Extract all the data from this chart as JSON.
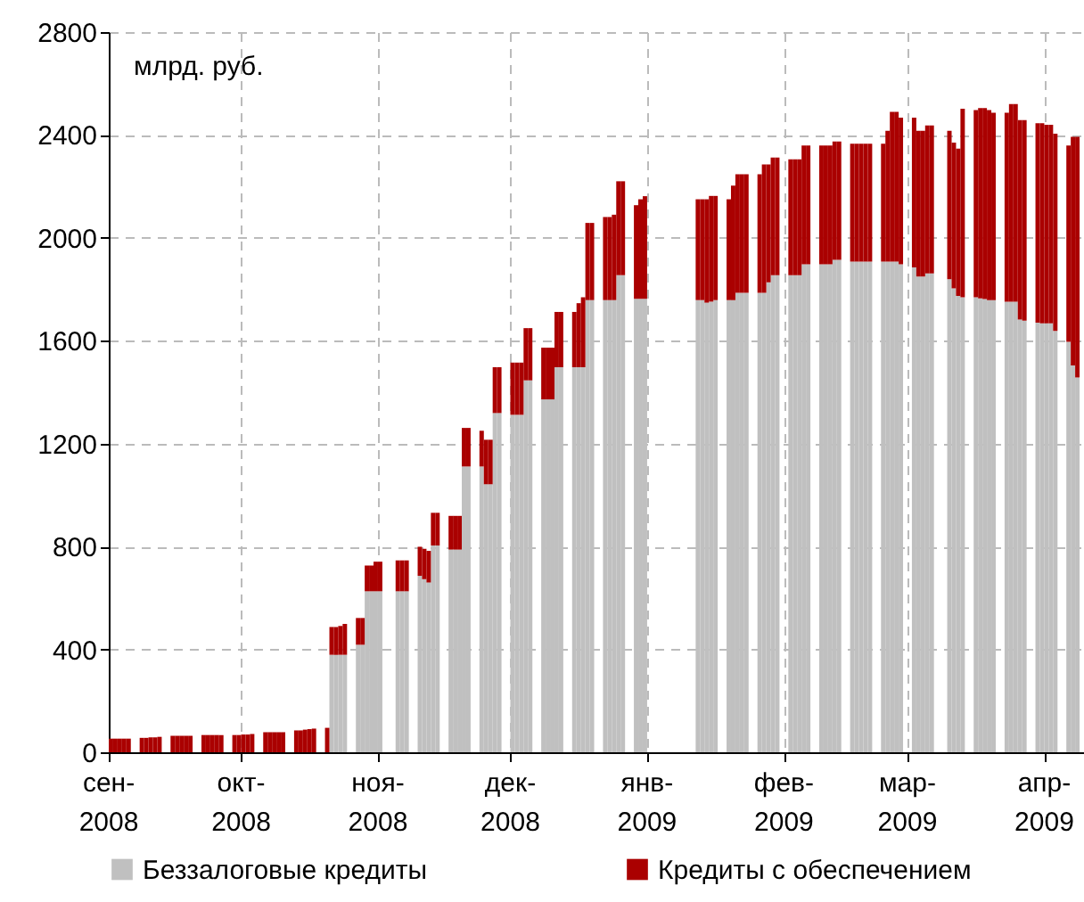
{
  "chart_data": {
    "type": "bar",
    "stacked": true,
    "annotations": [
      "млрд. руб."
    ],
    "x": [
      "2008-09-01",
      "2008-09-02",
      "2008-09-03",
      "2008-09-04",
      "2008-09-05",
      "2008-09-08",
      "2008-09-09",
      "2008-09-10",
      "2008-09-11",
      "2008-09-12",
      "2008-09-15",
      "2008-09-16",
      "2008-09-17",
      "2008-09-18",
      "2008-09-19",
      "2008-09-22",
      "2008-09-23",
      "2008-09-24",
      "2008-09-25",
      "2008-09-26",
      "2008-09-29",
      "2008-09-30",
      "2008-10-01",
      "2008-10-02",
      "2008-10-03",
      "2008-10-06",
      "2008-10-07",
      "2008-10-08",
      "2008-10-09",
      "2008-10-10",
      "2008-10-13",
      "2008-10-14",
      "2008-10-15",
      "2008-10-16",
      "2008-10-17",
      "2008-10-20",
      "2008-10-21",
      "2008-10-22",
      "2008-10-23",
      "2008-10-24",
      "2008-10-27",
      "2008-10-28",
      "2008-10-29",
      "2008-10-30",
      "2008-10-31",
      "2008-11-01",
      "2008-11-05",
      "2008-11-06",
      "2008-11-07",
      "2008-11-10",
      "2008-11-11",
      "2008-11-12",
      "2008-11-13",
      "2008-11-14",
      "2008-11-17",
      "2008-11-18",
      "2008-11-19",
      "2008-11-20",
      "2008-11-21",
      "2008-11-24",
      "2008-11-25",
      "2008-11-26",
      "2008-11-27",
      "2008-11-28",
      "2008-12-01",
      "2008-12-02",
      "2008-12-03",
      "2008-12-04",
      "2008-12-05",
      "2008-12-08",
      "2008-12-09",
      "2008-12-10",
      "2008-12-11",
      "2008-12-12",
      "2008-12-15",
      "2008-12-16",
      "2008-12-17",
      "2008-12-18",
      "2008-12-19",
      "2008-12-22",
      "2008-12-23",
      "2008-12-24",
      "2008-12-25",
      "2008-12-26",
      "2008-12-29",
      "2008-12-30",
      "2008-12-31",
      "2009-01-12",
      "2009-01-13",
      "2009-01-14",
      "2009-01-15",
      "2009-01-16",
      "2009-01-19",
      "2009-01-20",
      "2009-01-21",
      "2009-01-22",
      "2009-01-23",
      "2009-01-26",
      "2009-01-27",
      "2009-01-28",
      "2009-01-29",
      "2009-01-30",
      "2009-02-02",
      "2009-02-03",
      "2009-02-04",
      "2009-02-05",
      "2009-02-06",
      "2009-02-09",
      "2009-02-10",
      "2009-02-11",
      "2009-02-12",
      "2009-02-13",
      "2009-02-16",
      "2009-02-17",
      "2009-02-18",
      "2009-02-19",
      "2009-02-20",
      "2009-02-23",
      "2009-02-24",
      "2009-02-25",
      "2009-02-26",
      "2009-02-27",
      "2009-03-02",
      "2009-03-03",
      "2009-03-04",
      "2009-03-05",
      "2009-03-06",
      "2009-03-10",
      "2009-03-11",
      "2009-03-12",
      "2009-03-13",
      "2009-03-16",
      "2009-03-17",
      "2009-03-18",
      "2009-03-19",
      "2009-03-20",
      "2009-03-23",
      "2009-03-24",
      "2009-03-25",
      "2009-03-26",
      "2009-03-27",
      "2009-03-30",
      "2009-03-31",
      "2009-04-01",
      "2009-04-02",
      "2009-04-03",
      "2009-04-06",
      "2009-04-07",
      "2009-04-08"
    ],
    "series": [
      {
        "name": "Беззалоговые кредиты",
        "color": "#c0c0c0",
        "values": [
          null,
          null,
          null,
          null,
          null,
          null,
          null,
          null,
          null,
          null,
          null,
          null,
          null,
          null,
          null,
          null,
          null,
          null,
          null,
          null,
          null,
          null,
          null,
          null,
          null,
          null,
          null,
          null,
          null,
          null,
          null,
          null,
          null,
          null,
          null,
          null,
          379,
          379,
          379,
          379,
          418,
          418,
          626,
          626,
          626,
          626,
          626,
          626,
          626,
          686,
          673,
          660,
          804,
          804,
          788,
          788,
          788,
          1111,
          1111,
          1111,
          1042,
          1042,
          1319,
          1319,
          1312,
          1312,
          1312,
          1446,
          1446,
          1372,
          1372,
          1372,
          1497,
          1497,
          1497,
          1497,
          1497,
          1758,
          1758,
          1758,
          1758,
          1758,
          1855,
          1855,
          1763,
          1763,
          1763,
          1758,
          1758,
          1748,
          1752,
          1758,
          1758,
          1758,
          1786,
          1786,
          1786,
          1786,
          1786,
          1827,
          1855,
          1855,
          1855,
          1855,
          1855,
          1897,
          1897,
          1897,
          1897,
          1897,
          1915,
          1915,
          1908,
          1908,
          1908,
          1908,
          1908,
          1908,
          1908,
          1908,
          1908,
          1897,
          1885,
          1850,
          1850,
          1862,
          1862,
          1839,
          1804,
          1774,
          1769,
          1769,
          1765,
          1762,
          1758,
          1758,
          1752,
          1752,
          1752,
          1682,
          1678,
          1670,
          1668,
          1668,
          1668,
          1638,
          1596,
          1504,
          1457
        ]
      },
      {
        "name": "Кредиты с обеспечением",
        "color": "#aa0000",
        "values": [
          53,
          53,
          53,
          53,
          53,
          56,
          56,
          58,
          58,
          60,
          64,
          64,
          64,
          64,
          64,
          67,
          67,
          67,
          67,
          67,
          67,
          67,
          69,
          69,
          71,
          78,
          78,
          78,
          78,
          78,
          85,
          85,
          88,
          90,
          92,
          95,
          108,
          108,
          112,
          120,
          104,
          104,
          100,
          100,
          115,
          115,
          120,
          120,
          120,
          113,
          118,
          123,
          127,
          127,
          131,
          131,
          131,
          150,
          150,
          139,
          173,
          173,
          178,
          178,
          203,
          203,
          203,
          203,
          203,
          201,
          201,
          201,
          215,
          215,
          215,
          249,
          272,
          300,
          300,
          323,
          323,
          332,
          365,
          365,
          364,
          387,
          399,
          392,
          392,
          402,
          411,
          405,
          392,
          445,
          461,
          461,
          461,
          461,
          499,
          458,
          457,
          457,
          450,
          450,
          450,
          462,
          462,
          462,
          462,
          462,
          460,
          460,
          458,
          458,
          458,
          458,
          458,
          458,
          508,
          582,
          582,
          570,
          582,
          566,
          566,
          575,
          575,
          577,
          566,
          573,
          733,
          728,
          740,
          743,
          739,
          728,
          734,
          768,
          768,
          776,
          780,
          776,
          778,
          772,
          772,
          767,
          763,
          889,
          936
        ]
      }
    ],
    "xlim": [
      "2008-09-01",
      "2009-04-10"
    ],
    "xticks": [
      {
        "value": "2008-09-01",
        "label": "сен-\n2008"
      },
      {
        "value": "2008-10-01",
        "label": "окт-\n2008"
      },
      {
        "value": "2008-11-01",
        "label": "ноя-\n2008"
      },
      {
        "value": "2008-12-01",
        "label": "дек-\n2008"
      },
      {
        "value": "2009-01-01",
        "label": "янв-\n2009"
      },
      {
        "value": "2009-02-01",
        "label": "фев-\n2009"
      },
      {
        "value": "2009-03-01",
        "label": "мар-\n2009"
      },
      {
        "value": "2009-04-01",
        "label": "апр-\n2009"
      }
    ],
    "ylim": [
      0,
      2800
    ],
    "yticks": [
      0,
      400,
      800,
      1200,
      1600,
      2000,
      2400,
      2800
    ],
    "grid": true,
    "legend": "bottom"
  }
}
